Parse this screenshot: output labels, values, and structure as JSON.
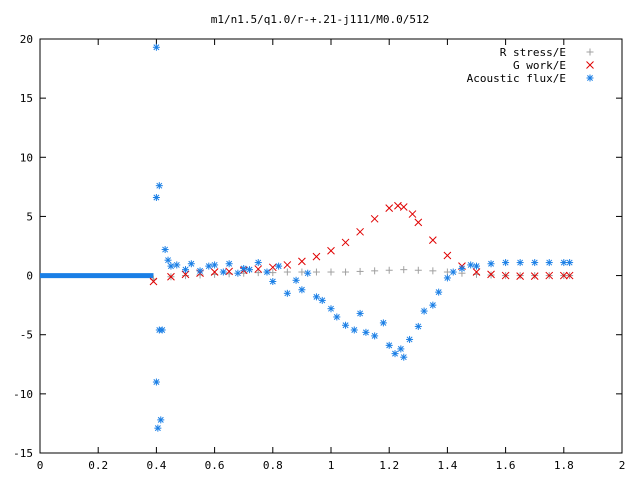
{
  "chart_data": {
    "type": "scatter",
    "title": "m1/n1.5/q1.0/r-+.21-j111/M0.0/512",
    "xlabel": "",
    "ylabel": "",
    "xlim": [
      0,
      2
    ],
    "ylim": [
      -15,
      20
    ],
    "x_ticks": [
      0,
      0.2,
      0.4,
      0.6,
      0.8,
      1,
      1.2,
      1.4,
      1.6,
      1.8,
      2
    ],
    "x_tick_labels": [
      "0",
      "0.2",
      "0.4",
      "0.6",
      "0.8",
      "1",
      "1.2",
      "1.4",
      "1.6",
      "1.8",
      "2"
    ],
    "y_ticks": [
      20,
      15,
      10,
      5,
      0,
      -5,
      -10,
      -15
    ],
    "y_tick_labels": [
      "20",
      "15",
      "10",
      "5",
      "0",
      "-5",
      "-10",
      "-15"
    ],
    "grid": false,
    "legend_position": "top-right",
    "series": [
      {
        "name": "R stress/E",
        "marker": "plus",
        "color": "#a0a0a0",
        "x": [
          0.39,
          0.45,
          0.5,
          0.55,
          0.6,
          0.65,
          0.7,
          0.75,
          0.8,
          0.85,
          0.9,
          0.95,
          1.0,
          1.05,
          1.1,
          1.15,
          1.2,
          1.25,
          1.3,
          1.35,
          1.4,
          1.45,
          1.5,
          1.55,
          1.6,
          1.65,
          1.7,
          1.75,
          1.8,
          1.82
        ],
        "y": [
          -0.3,
          -0.1,
          0.0,
          0.05,
          0.1,
          0.15,
          0.2,
          0.25,
          0.25,
          0.3,
          0.3,
          0.3,
          0.3,
          0.3,
          0.35,
          0.4,
          0.45,
          0.5,
          0.45,
          0.4,
          0.3,
          0.2,
          0.1,
          0.05,
          0.0,
          0.0,
          0.0,
          0.0,
          0.0,
          0.0
        ]
      },
      {
        "name": "G work/E",
        "marker": "cross",
        "color": "#e00000",
        "x": [
          0.39,
          0.45,
          0.5,
          0.55,
          0.6,
          0.65,
          0.7,
          0.75,
          0.8,
          0.85,
          0.9,
          0.95,
          1.0,
          1.05,
          1.1,
          1.15,
          1.2,
          1.23,
          1.25,
          1.28,
          1.3,
          1.35,
          1.4,
          1.45,
          1.5,
          1.55,
          1.6,
          1.65,
          1.7,
          1.75,
          1.8,
          1.82
        ],
        "y": [
          -0.5,
          -0.1,
          0.1,
          0.2,
          0.3,
          0.35,
          0.45,
          0.55,
          0.7,
          0.9,
          1.2,
          1.6,
          2.1,
          2.8,
          3.7,
          4.8,
          5.7,
          5.9,
          5.8,
          5.2,
          4.5,
          3.0,
          1.7,
          0.8,
          0.3,
          0.1,
          0.0,
          -0.05,
          -0.05,
          0.0,
          0.0,
          0.0
        ]
      },
      {
        "name": "Acoustic flux/E",
        "marker": "star",
        "color": "#1a7fe6",
        "x": [
          0.4,
          0.4,
          0.4,
          0.405,
          0.41,
          0.41,
          0.415,
          0.42,
          0.43,
          0.44,
          0.45,
          0.47,
          0.5,
          0.52,
          0.55,
          0.58,
          0.6,
          0.63,
          0.65,
          0.68,
          0.7,
          0.72,
          0.75,
          0.78,
          0.8,
          0.82,
          0.85,
          0.88,
          0.9,
          0.92,
          0.95,
          0.97,
          1.0,
          1.02,
          1.05,
          1.08,
          1.1,
          1.12,
          1.15,
          1.18,
          1.2,
          1.22,
          1.24,
          1.25,
          1.27,
          1.3,
          1.32,
          1.35,
          1.37,
          1.4,
          1.42,
          1.45,
          1.48,
          1.5,
          1.55,
          1.6,
          1.65,
          1.7,
          1.75,
          1.8,
          1.82
        ],
        "y": [
          19.3,
          6.6,
          -9.0,
          -12.9,
          7.6,
          -4.6,
          -12.2,
          -4.6,
          2.2,
          1.3,
          0.8,
          0.9,
          0.5,
          1.0,
          0.4,
          0.8,
          0.9,
          0.3,
          1.0,
          0.2,
          0.6,
          0.5,
          1.1,
          0.3,
          -0.5,
          0.8,
          -1.5,
          -0.4,
          -1.2,
          0.2,
          -1.8,
          -2.1,
          -2.8,
          -3.5,
          -4.2,
          -4.6,
          -3.2,
          -4.8,
          -5.1,
          -4.0,
          -5.9,
          -6.6,
          -6.2,
          -6.9,
          -5.4,
          -4.3,
          -3.0,
          -2.5,
          -1.4,
          -0.2,
          0.3,
          0.6,
          0.9,
          0.8,
          1.0,
          1.1,
          1.1,
          1.1,
          1.1,
          1.1,
          1.1
        ]
      }
    ],
    "baseline_series_note_free": true
  }
}
